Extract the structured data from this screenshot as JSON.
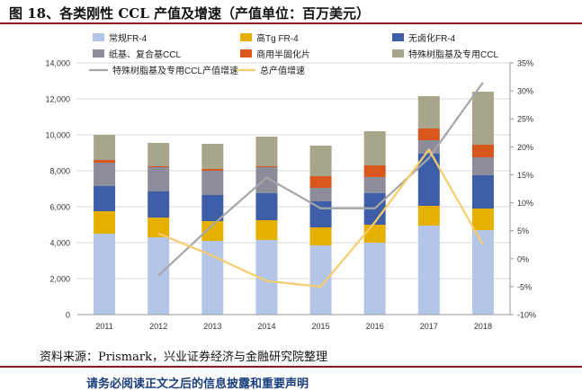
{
  "title": "图 18、各类刚性 CCL 产值及增速（产值单位：百万美元）",
  "source": "资料来源：Prismark，兴业证券经济与金融研究院整理",
  "disclaimer": "请务必阅读正文之后的信息披露和重要声明",
  "chart_data": {
    "type": "bar",
    "stacked": true,
    "categories": [
      "2011",
      "2012",
      "2013",
      "2014",
      "2015",
      "2016",
      "2017",
      "2018"
    ],
    "ylim": [
      0,
      14000
    ],
    "yticks": [
      "0",
      "2,000",
      "4,000",
      "6,000",
      "8,000",
      "10,000",
      "12,000",
      "14,000"
    ],
    "y2lim": [
      -10,
      35
    ],
    "y2ticks": [
      "-10%",
      "-5%",
      "0%",
      "5%",
      "10%",
      "15%",
      "20%",
      "25%",
      "30%",
      "35%"
    ],
    "grid": true,
    "legend_position": "top",
    "series": [
      {
        "name": "常规FR-4",
        "color": "#B4C6E7",
        "values": [
          4500,
          4300,
          4100,
          4150,
          3850,
          4000,
          4950,
          4700
        ]
      },
      {
        "name": "高Tg FR-4",
        "color": "#E6B000",
        "values": [
          1250,
          1100,
          1100,
          1100,
          1000,
          1000,
          1100,
          1200
        ]
      },
      {
        "name": "无卤化FR-4",
        "color": "#3E5FA8",
        "values": [
          1400,
          1450,
          1450,
          1500,
          1450,
          1750,
          2900,
          1850
        ]
      },
      {
        "name": "纸基、复合基CCL",
        "color": "#8C8C9A",
        "values": [
          1300,
          1350,
          1350,
          1450,
          750,
          900,
          750,
          1000
        ]
      },
      {
        "name": "商用半固化片",
        "color": "#D9561C",
        "values": [
          150,
          50,
          100,
          50,
          650,
          650,
          650,
          700
        ]
      },
      {
        "name": "特殊树脂基及专用CCL",
        "color": "#A8A68A",
        "values": [
          1400,
          1300,
          1400,
          1650,
          1700,
          1900,
          1800,
          2950
        ]
      }
    ],
    "lines": [
      {
        "name": "特殊树脂基及专用CCL产值增速",
        "color": "#A6A6A6",
        "axis": "right",
        "values": [
          null,
          -3,
          6,
          14.5,
          9,
          9,
          18,
          31.5
        ]
      },
      {
        "name": "总产值增速",
        "color": "#F7CC6B",
        "axis": "right",
        "values": [
          null,
          4.5,
          0.5,
          -4,
          -5,
          6.5,
          19.5,
          2.5
        ]
      }
    ]
  }
}
